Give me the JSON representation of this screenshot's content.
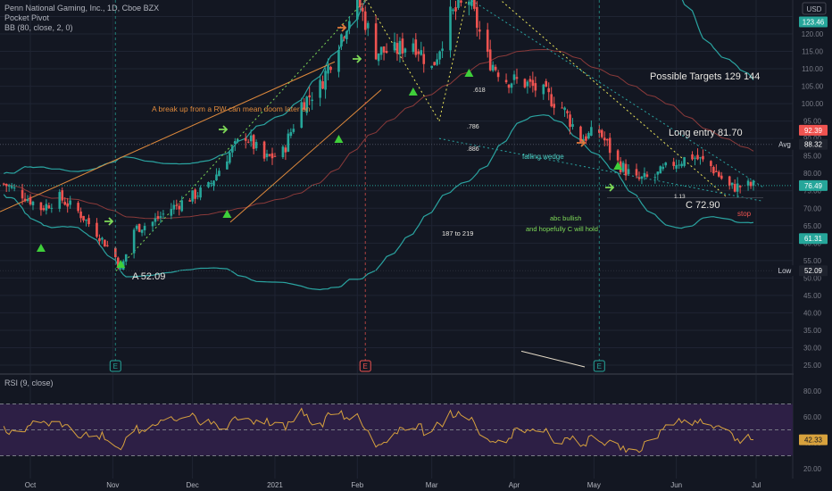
{
  "header": {
    "title": "Penn National Gaming, Inc., 1D, Cboe BZX",
    "indicator_1": "Pocket Pivot",
    "indicator_2": "BB (80, close, 2, 0)",
    "currency": "USD",
    "rsi_label": "RSI (9, close)"
  },
  "chart_data": [
    {
      "type": "candlestick",
      "x_ticks": [
        "Oct",
        "Nov",
        "Dec",
        "2021",
        "Feb",
        "Mar",
        "Apr",
        "May",
        "Jun",
        "Jul"
      ],
      "y_ticks": [
        25,
        30,
        35,
        40,
        45,
        50,
        55,
        60,
        65,
        70,
        75,
        80,
        85,
        90,
        95,
        100,
        105,
        110,
        115,
        120,
        125
      ],
      "ylim": [
        23,
        131
      ],
      "price_labels": [
        {
          "text": "123.46",
          "value": 123.46,
          "color": "#26a69a"
        },
        {
          "text": "92.39",
          "value": 92.39,
          "color": "#ef5350"
        },
        {
          "text": "88.32",
          "value": 88.32,
          "color": "#1e222d",
          "tag": "Avg"
        },
        {
          "text": "76.49",
          "value": 76.49,
          "color": "#26a69a"
        },
        {
          "text": "61.31",
          "value": 61.31,
          "color": "#26a69a"
        },
        {
          "text": "52.09",
          "value": 52.09,
          "color": "#1e222d",
          "tag": "Low"
        }
      ],
      "close_path": [
        [
          "2020-09-21",
          77
        ],
        [
          "2020-09-28",
          74
        ],
        [
          "2020-10-05",
          70
        ],
        [
          "2020-10-12",
          73
        ],
        [
          "2020-10-19",
          69
        ],
        [
          "2020-10-26",
          63
        ],
        [
          "2020-11-02",
          56
        ],
        [
          "2020-11-04",
          52.09
        ],
        [
          "2020-11-09",
          64
        ],
        [
          "2020-11-16",
          66
        ],
        [
          "2020-11-23",
          70
        ],
        [
          "2020-11-30",
          73
        ],
        [
          "2020-12-07",
          76
        ],
        [
          "2020-12-14",
          85
        ],
        [
          "2020-12-21",
          91
        ],
        [
          "2020-12-28",
          84
        ],
        [
          "2021-01-04",
          86
        ],
        [
          "2021-01-11",
          100
        ],
        [
          "2021-01-18",
          105
        ],
        [
          "2021-01-25",
          118
        ],
        [
          "2021-02-01",
          130
        ],
        [
          "2021-02-08",
          115
        ],
        [
          "2021-02-15",
          115
        ],
        [
          "2021-02-22",
          118
        ],
        [
          "2021-03-01",
          110
        ],
        [
          "2021-03-08",
          125
        ],
        [
          "2021-03-15",
          130
        ],
        [
          "2021-03-22",
          113
        ],
        [
          "2021-03-29",
          107
        ],
        [
          "2021-04-05",
          106
        ],
        [
          "2021-04-12",
          103
        ],
        [
          "2021-04-19",
          99
        ],
        [
          "2021-04-26",
          90
        ],
        [
          "2021-05-03",
          92
        ],
        [
          "2021-05-10",
          83
        ],
        [
          "2021-05-17",
          78
        ],
        [
          "2021-05-24",
          79
        ],
        [
          "2021-05-31",
          83
        ],
        [
          "2021-06-07",
          85
        ],
        [
          "2021-06-14",
          82
        ],
        [
          "2021-06-21",
          76
        ],
        [
          "2021-06-28",
          76.49
        ]
      ],
      "pivot_markers": [
        "2020-10-05",
        "2020-11-04",
        "2020-12-14",
        "2021-01-25",
        "2021-02-22",
        "2021-03-15",
        "2021-05-10"
      ],
      "earnings_markers": [
        "2020-11-02",
        "2021-02-04",
        "2021-05-03"
      ],
      "earnings_label": "E",
      "annotations": {
        "breakup": "A break up from a RW can mean doom later on",
        "point_a": "A 52.09",
        "targets": "Possible Targets  129  144",
        "long_entry": "Long entry 81.70",
        "fib_618": ".618",
        "fib_786": ".786",
        "fib_886": ".886",
        "falling_wedge": "falling wedge",
        "range_187": "187 to 219",
        "abc_1": "abc bullish",
        "abc_2": "and hopefully C will hold",
        "point_c": "C  72.90",
        "fib_113": "1.13",
        "stop": "stop"
      }
    },
    {
      "type": "line",
      "name": "RSI (9, close)",
      "y_ticks": [
        20,
        40,
        60,
        80
      ],
      "ylim": [
        14,
        90
      ],
      "bands": [
        30,
        50,
        70
      ],
      "current": 42.33,
      "color": "#d8a23d"
    }
  ]
}
